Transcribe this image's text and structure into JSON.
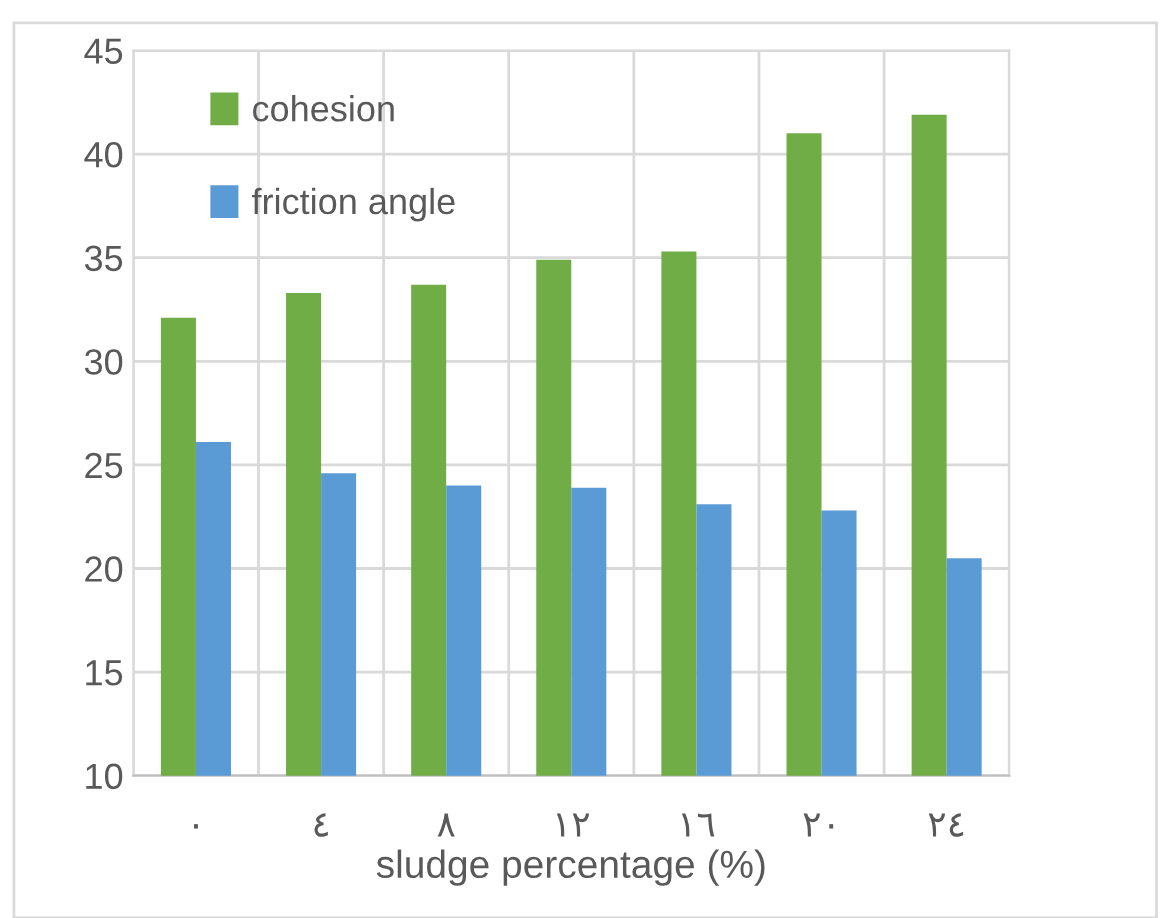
{
  "chart_data": {
    "type": "bar",
    "xlabel": "sludge percentage (%)",
    "categories": [
      "٠",
      "٤",
      "٨",
      "١٢",
      "١٦",
      "٢٠",
      "٢٤"
    ],
    "series": [
      {
        "name": "cohesion",
        "color": "#70ad47",
        "values": [
          32.1,
          33.3,
          33.7,
          34.9,
          35.3,
          41.0,
          41.9
        ]
      },
      {
        "name": "friction angle",
        "color": "#5b9bd5",
        "values": [
          26.1,
          24.6,
          24.0,
          23.9,
          23.1,
          22.8,
          20.5
        ]
      }
    ],
    "ylim": [
      10,
      45
    ],
    "yticks": [
      10,
      15,
      20,
      25,
      30,
      35,
      40,
      45
    ],
    "grid": true,
    "legend": "top left"
  }
}
